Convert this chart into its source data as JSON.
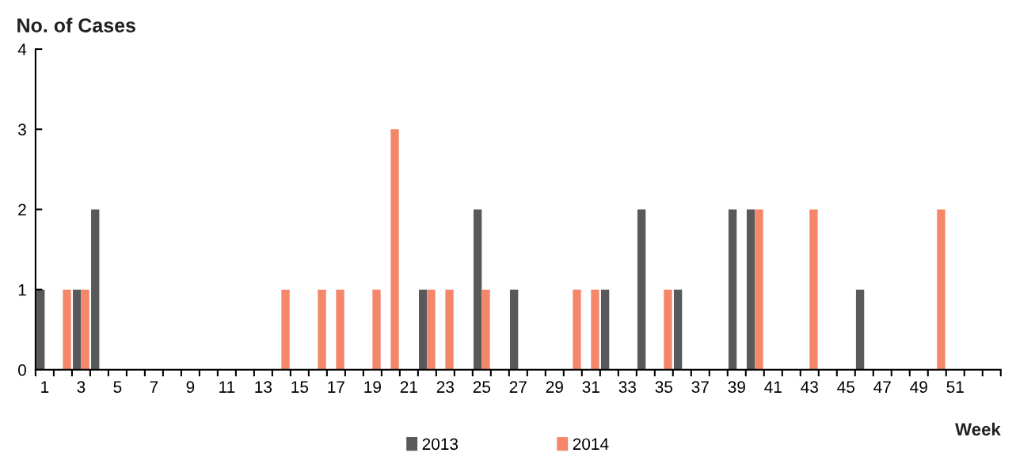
{
  "chart_data": {
    "type": "bar",
    "ylabel": "No. of Cases",
    "xlabel": "Week",
    "categories": [
      "1",
      null,
      "3",
      null,
      "5",
      null,
      "7",
      null,
      "9",
      null,
      "11",
      null,
      "13",
      null,
      "15",
      null,
      "17",
      null,
      "19",
      null,
      "21",
      null,
      "23",
      null,
      "25",
      null,
      "27",
      null,
      "29",
      null,
      "31",
      null,
      "33",
      null,
      "35",
      null,
      "37",
      null,
      "39",
      null,
      "41",
      null,
      "43",
      null,
      "45",
      null,
      "47",
      null,
      "49",
      null,
      "51",
      null,
      null
    ],
    "series": [
      {
        "name": "2013",
        "color": "#58595b",
        "values": [
          1,
          0,
          1,
          2,
          0,
          0,
          0,
          0,
          0,
          0,
          0,
          0,
          0,
          0,
          0,
          0,
          0,
          0,
          0,
          0,
          0,
          1,
          0,
          0,
          2,
          0,
          1,
          0,
          0,
          0,
          0,
          1,
          0,
          2,
          0,
          1,
          0,
          0,
          2,
          2,
          0,
          0,
          0,
          0,
          0,
          1,
          0,
          0,
          0,
          0,
          0,
          0,
          0
        ]
      },
      {
        "name": "2014",
        "color": "#f4876a",
        "values": [
          0,
          1,
          1,
          0,
          0,
          0,
          0,
          0,
          0,
          0,
          0,
          0,
          0,
          1,
          0,
          1,
          1,
          0,
          1,
          3,
          0,
          1,
          1,
          0,
          1,
          0,
          0,
          0,
          0,
          1,
          1,
          0,
          0,
          0,
          1,
          0,
          0,
          0,
          0,
          2,
          0,
          0,
          2,
          0,
          0,
          0,
          0,
          0,
          0,
          2,
          0,
          0,
          0
        ]
      }
    ],
    "ylim": [
      0,
      4
    ],
    "yticks": [
      0,
      1,
      2,
      3,
      4
    ],
    "grid": false,
    "legend": "bottom"
  }
}
